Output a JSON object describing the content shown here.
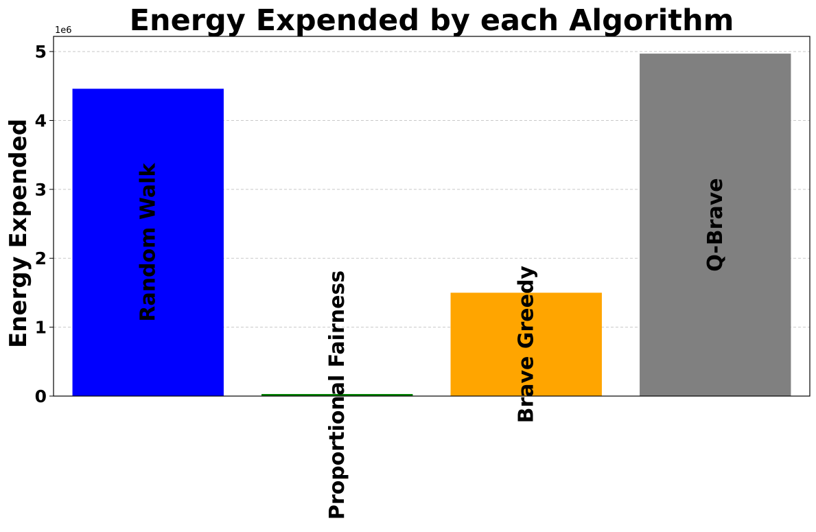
{
  "chart_data": {
    "type": "bar",
    "title": "Energy Expended by each Algorithm",
    "xlabel": "",
    "ylabel": "Energy Expended",
    "y_offset_label": "1e6",
    "categories": [
      "Random Walk",
      "Proportional Fairness",
      "Brave Greedy",
      "Q-Brave"
    ],
    "values": [
      4460000,
      30000,
      1500000,
      4970000
    ],
    "colors": [
      "#0000ff",
      "#008000",
      "#ffa500",
      "#808080"
    ],
    "ylim": [
      0,
      5220000
    ],
    "yticks": [
      0,
      1000000,
      2000000,
      3000000,
      4000000,
      5000000
    ],
    "ytick_labels": [
      "0",
      "1",
      "2",
      "3",
      "4",
      "5"
    ],
    "grid": "horizontal dashed",
    "legend": "none"
  }
}
